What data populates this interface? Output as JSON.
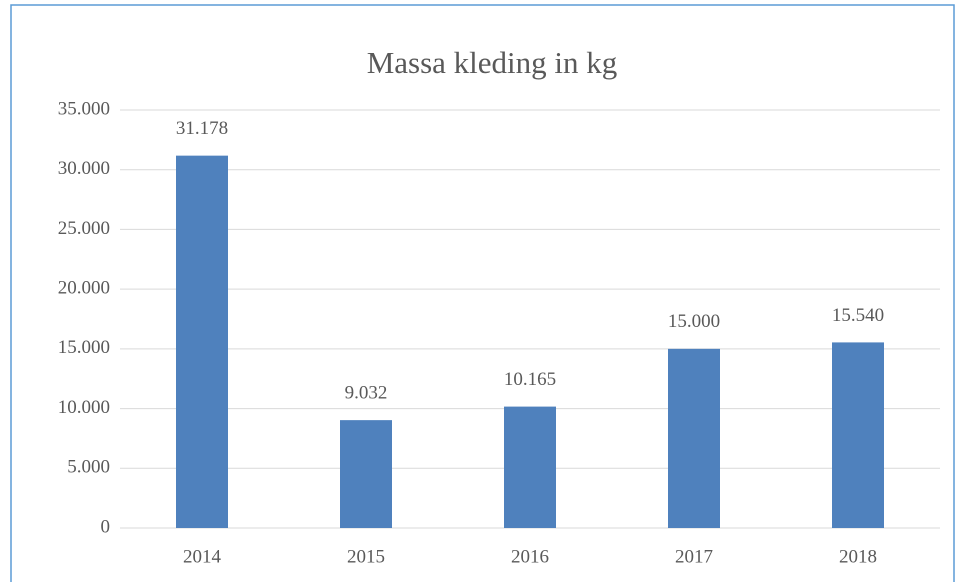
{
  "chart_data": {
    "type": "bar",
    "title": "Massa kleding in kg",
    "categories": [
      "2014",
      "2015",
      "2016",
      "2017",
      "2018"
    ],
    "values": [
      31178,
      9032,
      10165,
      15000,
      15540
    ],
    "value_labels": [
      "31.178",
      "9.032",
      "10.165",
      "15.000",
      "15.540"
    ],
    "color": "#4f81bd",
    "ylim": [
      0,
      35000
    ],
    "yticks": [
      0,
      {
        "value": 5000,
        "label": "5.000"
      },
      {
        "value": 10000,
        "label": "10.000"
      },
      {
        "value": 15000,
        "label": "15.000"
      },
      {
        "value": 20000,
        "label": "20.000"
      },
      {
        "value": 25000,
        "label": "25.000"
      },
      {
        "value": 30000,
        "label": "30.000"
      },
      {
        "value": 35000,
        "label": "35.000"
      }
    ],
    "grid": true
  }
}
